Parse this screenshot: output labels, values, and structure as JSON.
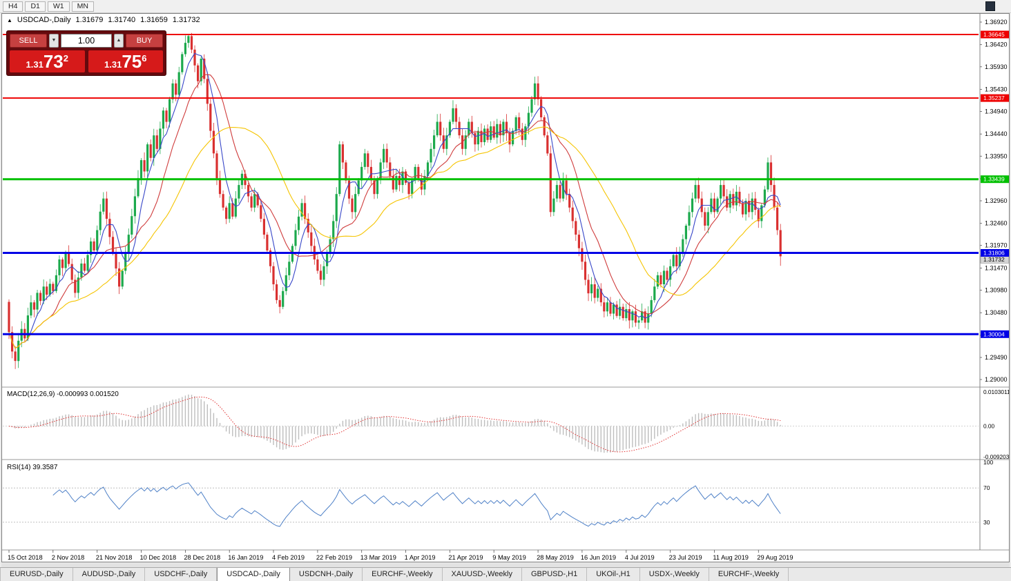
{
  "toolbar": {
    "timeframes": [
      "H4",
      "D1",
      "W1",
      "MN"
    ]
  },
  "chart": {
    "collapse_marker": "▲",
    "symbol_period": "USDCAD-,Daily",
    "open": "1.31679",
    "high": "1.31740",
    "low": "1.31659",
    "close": "1.31732"
  },
  "trade_panel": {
    "sell_label": "SELL",
    "buy_label": "BUY",
    "volume": "1.00",
    "stepper_down_glyph": "▼",
    "stepper_up_glyph": "▲",
    "sell_price": {
      "prefix": "1.31",
      "big": "73",
      "pip": "2"
    },
    "buy_price": {
      "prefix": "1.31",
      "big": "75",
      "pip": "6"
    }
  },
  "indicators": {
    "macd_label": "MACD(12,26,9) -0.000993 0.001520",
    "macd_scale": {
      "top": "0.0103011",
      "zero": "0.00",
      "bottom": "-0.0092030"
    },
    "rsi_label": "RSI(14) 39.3587",
    "rsi_scale": [
      "100",
      "70",
      "30"
    ]
  },
  "tabs": {
    "active_index": 3,
    "items": [
      "EURUSD-,Daily",
      "AUDUSD-,Daily",
      "USDCHF-,Daily",
      "USDCAD-,Daily",
      "USDCNH-,Daily",
      "EURCHF-,Weekly",
      "XAUUSD-,Weekly",
      "GBPUSD-,H1",
      "UKOil-,H1",
      "USDX-,Weekly",
      "EURCHF-,Weekly"
    ]
  },
  "chart_data": {
    "type": "candlestick",
    "symbol": "USDCAD",
    "timeframe": "Daily",
    "title": "USDCAD-,Daily",
    "ohlc_current": {
      "open": 1.31679,
      "high": 1.3174,
      "low": 1.31659,
      "close": 1.31732
    },
    "y_range": [
      1.29,
      1.3692
    ],
    "scale_labels": [
      "1.36920",
      "1.36420",
      "1.35930",
      "1.35430",
      "1.34940",
      "1.34440",
      "1.33950",
      "1.33450",
      "1.32960",
      "1.32460",
      "1.31970",
      "1.31470",
      "1.30980",
      "1.30480",
      "1.29980",
      "1.29490",
      "1.29000"
    ],
    "x_labels": [
      "15 Oct 2018",
      "2 Nov 2018",
      "21 Nov 2018",
      "10 Dec 2018",
      "28 Dec 2018",
      "16 Jan 2019",
      "4 Feb 2019",
      "22 Feb 2019",
      "13 Mar 2019",
      "1 Apr 2019",
      "21 Apr 2019",
      "9 May 2019",
      "28 May 2019",
      "16 Jun 2019",
      "4 Jul 2019",
      "23 Jul 2019",
      "11 Aug 2019",
      "29 Aug 2019"
    ],
    "label_every": 14,
    "first_open": 1.3072,
    "closes": [
      1.3005,
      1.2962,
      1.2941,
      1.2986,
      1.3012,
      1.2991,
      1.3042,
      1.3071,
      1.3055,
      1.3092,
      1.3074,
      1.3106,
      1.3088,
      1.3112,
      1.3096,
      1.3131,
      1.3166,
      1.3147,
      1.3181,
      1.3156,
      1.3121,
      1.3092,
      1.3126,
      1.3157,
      1.3141,
      1.3176,
      1.3206,
      1.3186,
      1.3231,
      1.3272,
      1.3301,
      1.3256,
      1.3216,
      1.3181,
      1.3146,
      1.3106,
      1.3141,
      1.3181,
      1.3221,
      1.3262,
      1.3306,
      1.3346,
      1.3386,
      1.3361,
      1.3421,
      1.3391,
      1.3441,
      1.3411,
      1.3456,
      1.3496,
      1.3471,
      1.3521,
      1.3556,
      1.3531,
      1.3581,
      1.3621,
      1.3646,
      1.3661,
      1.3631,
      1.3596,
      1.3561,
      1.3611,
      1.3566,
      1.3511,
      1.3451,
      1.3401,
      1.3346,
      1.3311,
      1.3281,
      1.3256,
      1.3291,
      1.3261,
      1.3301,
      1.3331,
      1.3356,
      1.3331,
      1.3306,
      1.3281,
      1.3311,
      1.3286,
      1.3256,
      1.3221,
      1.3186,
      1.3151,
      1.3111,
      1.3076,
      1.3061,
      1.3096,
      1.3131,
      1.3161,
      1.3196,
      1.3231,
      1.3261,
      1.3291,
      1.3256,
      1.3226,
      1.3196,
      1.3166,
      1.3141,
      1.3121,
      1.3151,
      1.3181,
      1.3211,
      1.3251,
      1.3311,
      1.3421,
      1.3381,
      1.3341,
      1.3301,
      1.3271,
      1.3311,
      1.3341,
      1.3371,
      1.3401,
      1.3371,
      1.3341,
      1.3311,
      1.3346,
      1.3381,
      1.3411,
      1.3381,
      1.3351,
      1.3321,
      1.3351,
      1.3331,
      1.3361,
      1.3336,
      1.3311,
      1.3341,
      1.3371,
      1.3346,
      1.3321,
      1.3351,
      1.3381,
      1.3411,
      1.3441,
      1.3471,
      1.3441,
      1.3411,
      1.3441,
      1.3471,
      1.3501,
      1.3471,
      1.3441,
      1.3411,
      1.3441,
      1.3471,
      1.3446,
      1.3421,
      1.3451,
      1.3426,
      1.3456,
      1.3431,
      1.3461,
      1.3436,
      1.3466,
      1.3441,
      1.3471,
      1.3446,
      1.3421,
      1.3451,
      1.3481,
      1.3456,
      1.3431,
      1.3461,
      1.3491,
      1.3521,
      1.3556,
      1.3521,
      1.3481,
      1.3441,
      1.3401,
      1.3271,
      1.3301,
      1.3331,
      1.3301,
      1.3341,
      1.3311,
      1.3281,
      1.3251,
      1.3221,
      1.3191,
      1.3161,
      1.3121,
      1.3091,
      1.3111,
      1.3081,
      1.3101,
      1.3071,
      1.3051,
      1.3071,
      1.3046,
      1.3066,
      1.3041,
      1.3061,
      1.3036,
      1.3056,
      1.3031,
      1.3051,
      1.3026,
      1.3031,
      1.3051,
      1.3026,
      1.3046,
      1.3076,
      1.3106,
      1.3131,
      1.3111,
      1.3141,
      1.3121,
      1.3151,
      1.3176,
      1.3151,
      1.3181,
      1.3211,
      1.3241,
      1.3271,
      1.3301,
      1.3331,
      1.3301,
      1.3271,
      1.3241,
      1.3271,
      1.3301,
      1.3271,
      1.3301,
      1.3331,
      1.3306,
      1.3281,
      1.3311,
      1.3286,
      1.3316,
      1.3291,
      1.3266,
      1.3296,
      1.3271,
      1.3301,
      1.3276,
      1.3251,
      1.3286,
      1.3321,
      1.3381,
      1.3331,
      1.3281,
      1.3231,
      1.3173
    ],
    "wick_overrides": {
      "57": [
        1.36645,
        null
      ],
      "241": [
        1.3392,
        null
      ],
      "245": [
        null,
        1.3152
      ]
    },
    "h_lines": [
      {
        "price": 1.36645,
        "color": "#ee0000",
        "label": "1.36645",
        "width": 2
      },
      {
        "price": 1.35237,
        "color": "#ee0000",
        "label": "1.35237",
        "width": 2
      },
      {
        "price": 1.33439,
        "color": "#00c000",
        "label": "1.33439",
        "width": 3
      },
      {
        "price": 1.31806,
        "color": "#0000e6",
        "label": "1.31806",
        "width": 3
      },
      {
        "price": 1.30004,
        "color": "#0000e6",
        "label": "1.30004",
        "width": 3
      }
    ],
    "current_price_tag": "1.31732",
    "moving_averages": [
      {
        "period": 6,
        "color": "#3746c8"
      },
      {
        "period": 14,
        "color": "#cf3b3b"
      },
      {
        "period": 32,
        "color": "#f5c400"
      }
    ],
    "macd": {
      "fast": 12,
      "slow": 26,
      "signal": 9,
      "histogram_color": "#bdbdbd",
      "signal_color": "#e03030"
    },
    "rsi": {
      "period": 14,
      "color": "#4f81c7",
      "levels": [
        70,
        30
      ]
    },
    "candle_up_color": "#1ca94c",
    "candle_down_color": "#d93030"
  }
}
